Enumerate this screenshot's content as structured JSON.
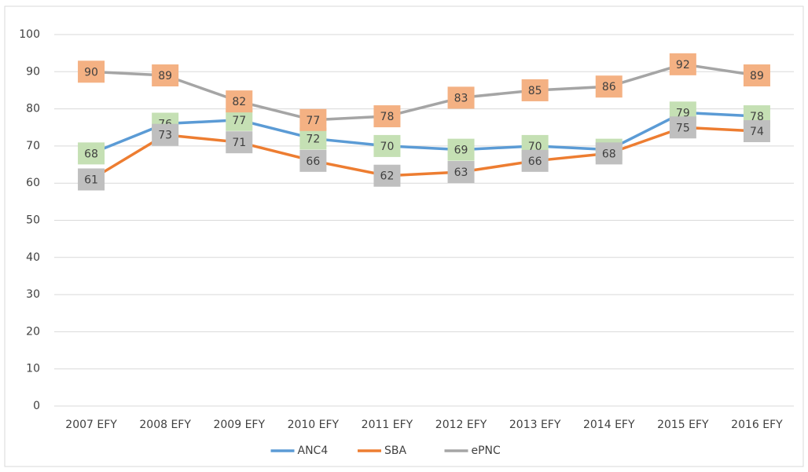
{
  "chart_data": {
    "type": "line",
    "categories": [
      "2007 EFY",
      "2008 EFY",
      "2009 EFY",
      "2010 EFY",
      "2011 EFY",
      "2012 EFY",
      "2013 EFY",
      "2014 EFY",
      "2015 EFY",
      "2016 EFY"
    ],
    "series": [
      {
        "name": "ANC4",
        "color": "#5b9bd5",
        "label_color": "#c5e0b4",
        "values": [
          68,
          76,
          77,
          72,
          70,
          69,
          70,
          69,
          79,
          78
        ]
      },
      {
        "name": "SBA",
        "color": "#ed7d31",
        "label_color": "#bfbfbf",
        "values": [
          61,
          73,
          71,
          66,
          62,
          63,
          66,
          68,
          75,
          74
        ]
      },
      {
        "name": "ePNC",
        "color": "#a5a5a5",
        "label_color": "#f4b183",
        "values": [
          90,
          89,
          82,
          77,
          78,
          83,
          85,
          86,
          92,
          89
        ]
      }
    ],
    "ylim": [
      0,
      100
    ],
    "yticks": [
      0,
      10,
      20,
      30,
      40,
      50,
      60,
      70,
      80,
      90,
      100
    ],
    "grid": true,
    "legend": "bottom"
  }
}
